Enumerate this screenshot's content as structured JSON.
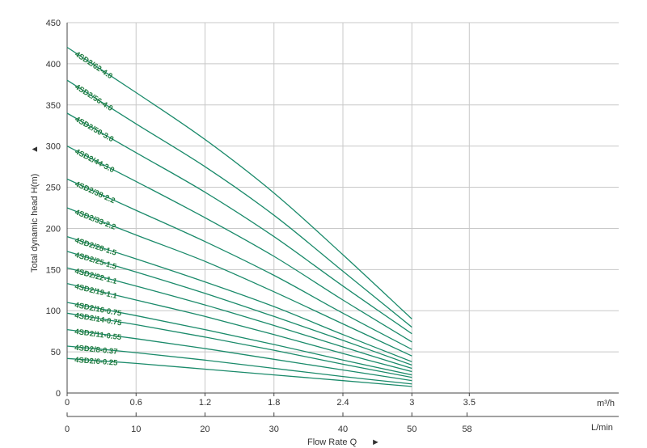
{
  "chart_data": {
    "type": "line",
    "title": "",
    "ylabel": "Total dynamic head H(m)",
    "ylabel_arrow": "▲",
    "xlabel": "Flow Rate Q",
    "xlabel_arrow": "►",
    "ylim": [
      0,
      450
    ],
    "y_ticks": [
      "0",
      "50",
      "100",
      "150",
      "200",
      "250",
      "300",
      "350",
      "400",
      "450"
    ],
    "xlim": [
      0,
      4.8
    ],
    "x_ticks_m3h": [
      "0",
      "0.6",
      "1.2",
      "1.8",
      "2.4",
      "3",
      "3.5"
    ],
    "x_unit_m3h": "m³/h",
    "x_ticks_lmin": [
      "0",
      "10",
      "20",
      "30",
      "40",
      "50",
      "58"
    ],
    "x_unit_lmin": "L/min",
    "grid": true,
    "legend": "none",
    "curve_color": "#1a8a6a",
    "label_color": "#1e7a3e",
    "series": [
      {
        "name": "4SD2/62-4.0",
        "x": [
          0,
          0.6,
          1.2,
          1.8,
          2.4,
          3
        ],
        "y": [
          420,
          365,
          308,
          243,
          168,
          90
        ]
      },
      {
        "name": "4SD2/56-4.0",
        "x": [
          0,
          0.6,
          1.2,
          1.8,
          2.4,
          3
        ],
        "y": [
          380,
          327,
          275,
          216,
          148,
          80
        ]
      },
      {
        "name": "4SD2/50-3.0",
        "x": [
          0,
          0.6,
          1.2,
          1.8,
          2.4,
          3
        ],
        "y": [
          340,
          292,
          244,
          190,
          130,
          72
        ]
      },
      {
        "name": "4SD2/44-3.0",
        "x": [
          0,
          0.6,
          1.2,
          1.8,
          2.4,
          3
        ],
        "y": [
          300,
          257,
          213,
          166,
          113,
          62
        ]
      },
      {
        "name": "4SD2/38-2.2",
        "x": [
          0,
          0.6,
          1.2,
          1.8,
          2.4,
          3
        ],
        "y": [
          260,
          222,
          184,
          143,
          97,
          53
        ]
      },
      {
        "name": "4SD2/33-2.2",
        "x": [
          0,
          0.6,
          1.2,
          1.8,
          2.4,
          3
        ],
        "y": [
          225,
          192,
          160,
          123,
          84,
          45
        ]
      },
      {
        "name": "4SD2/28-1.5",
        "x": [
          0,
          0.6,
          1.2,
          1.8,
          2.4,
          3
        ],
        "y": [
          190,
          163,
          135,
          105,
          71,
          38
        ]
      },
      {
        "name": "4SD2/25-1.5",
        "x": [
          0,
          0.6,
          1.2,
          1.8,
          2.4,
          3
        ],
        "y": [
          172,
          147,
          121,
          93,
          64,
          34
        ]
      },
      {
        "name": "4SD2/22-1.1",
        "x": [
          0,
          0.6,
          1.2,
          1.8,
          2.4,
          3
        ],
        "y": [
          152,
          130,
          107,
          82,
          56,
          30
        ]
      },
      {
        "name": "4SD2/19-1.1",
        "x": [
          0,
          0.6,
          1.2,
          1.8,
          2.4,
          3
        ],
        "y": [
          133,
          113,
          93,
          71,
          48,
          26
        ]
      },
      {
        "name": "4SD2/16-0.75",
        "x": [
          0,
          0.6,
          1.2,
          1.8,
          2.4,
          3
        ],
        "y": [
          110,
          94,
          77,
          59,
          40,
          22
        ]
      },
      {
        "name": "4SD2/14-0.75",
        "x": [
          0,
          0.6,
          1.2,
          1.8,
          2.4,
          3
        ],
        "y": [
          97,
          83,
          68,
          52,
          35,
          19
        ]
      },
      {
        "name": "4SD2/11-0.55",
        "x": [
          0,
          0.6,
          1.2,
          1.8,
          2.4,
          3
        ],
        "y": [
          77,
          66,
          54,
          41,
          28,
          15
        ]
      },
      {
        "name": "4SD2/8-0.37",
        "x": [
          0,
          0.6,
          1.2,
          1.8,
          2.4,
          3
        ],
        "y": [
          57,
          49,
          40,
          30,
          20,
          11
        ]
      },
      {
        "name": "4SD2/6-0.25",
        "x": [
          0,
          0.6,
          1.2,
          1.8,
          2.4,
          3
        ],
        "y": [
          42,
          36,
          29,
          22,
          15,
          8
        ]
      }
    ]
  }
}
